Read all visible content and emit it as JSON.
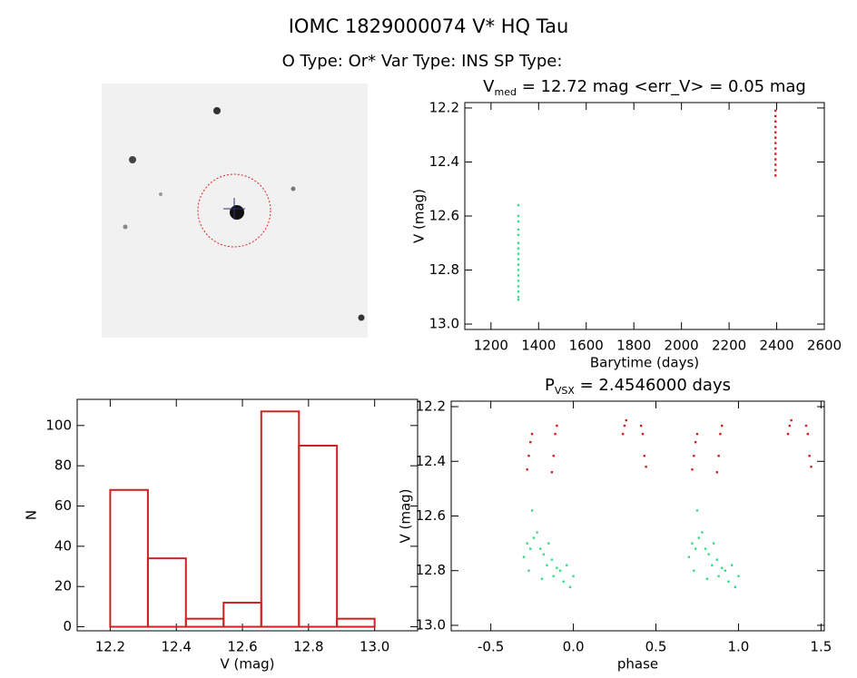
{
  "title": "IOMC 1829000074    V* HQ Tau",
  "subtitle": "O Type: Or*  Var Type: INS  SP Type:",
  "chart_data": [
    {
      "type": "scatter",
      "title": {
        "text": "V",
        "subscript": "med",
        "rest": " = 12.72 mag <err_V> = 0.05 mag"
      },
      "xlabel": "Barytime (days)",
      "ylabel": "V (mag)",
      "xlim": [
        1090,
        2600
      ],
      "ylim": [
        13.02,
        12.18
      ],
      "xticks": [
        1200,
        1400,
        1600,
        1800,
        2000,
        2200,
        2400,
        2600
      ],
      "yticks": [
        12.2,
        12.4,
        12.6,
        12.8,
        {
          "value": 13,
          "label": "13.0"
        }
      ],
      "series": [
        {
          "color": "#33dd88",
          "x": [
            1315,
            1315,
            1315,
            1315,
            1315,
            1315,
            1315,
            1315,
            1315,
            1315,
            1315,
            1315,
            1315,
            1315,
            1315,
            1315,
            1315
          ],
          "values": [
            12.56,
            12.6,
            12.62,
            12.65,
            12.67,
            12.7,
            12.72,
            12.74,
            12.76,
            12.78,
            12.8,
            12.82,
            12.84,
            12.86,
            12.88,
            12.9,
            12.91
          ]
        },
        {
          "color": "#cc2222",
          "x": [
            2395,
            2395,
            2395,
            2395,
            2395,
            2395,
            2395,
            2395,
            2395,
            2395,
            2395,
            2395,
            2395
          ],
          "values": [
            12.21,
            12.23,
            12.25,
            12.27,
            12.29,
            12.31,
            12.33,
            12.35,
            12.37,
            12.39,
            12.41,
            12.43,
            12.45
          ]
        }
      ]
    },
    {
      "type": "histogram",
      "xlabel": "V (mag)",
      "ylabel": "N",
      "color": "#cc2222",
      "bins": [
        12.2,
        12.314,
        12.429,
        12.543,
        12.657,
        12.771,
        12.886,
        13.0
      ],
      "values": [
        68,
        34,
        4,
        12,
        107,
        90,
        4
      ],
      "xlim": [
        12.1,
        13.13
      ],
      "ylim": [
        -2,
        113
      ],
      "xticks": [
        12.2,
        12.4,
        12.6,
        12.8,
        {
          "value": 13,
          "label": "13.0"
        }
      ],
      "yticks": [
        0,
        20,
        40,
        60,
        80,
        100
      ]
    },
    {
      "type": "scatter",
      "title": {
        "text": "P",
        "subscript": "VSX",
        "rest": " = 2.4546000 days"
      },
      "xlabel": "phase",
      "ylabel": "V (mag)",
      "xlim": [
        -0.74,
        1.52
      ],
      "ylim": [
        13.02,
        12.18
      ],
      "xticks": [
        -0.5,
        {
          "value": 0,
          "label": "0.0"
        },
        0.5,
        {
          "value": 1,
          "label": "1.0"
        },
        1.5
      ],
      "yticks": [
        12.2,
        12.4,
        12.6,
        12.8,
        {
          "value": 13,
          "label": "13.0"
        }
      ],
      "series": [
        {
          "color": "#cc2222",
          "x": [
            -0.28,
            -0.27,
            -0.26,
            -0.25,
            -0.13,
            -0.12,
            -0.11,
            -0.1,
            0.3,
            0.31,
            0.32,
            0.41,
            0.42,
            0.43,
            0.44,
            0.72,
            0.73,
            0.74,
            0.75,
            0.87,
            0.88,
            0.89,
            0.9,
            1.3,
            1.31,
            1.32,
            1.41,
            1.42,
            1.43,
            1.44
          ],
          "values": [
            12.43,
            12.38,
            12.33,
            12.3,
            12.44,
            12.38,
            12.3,
            12.27,
            12.3,
            12.27,
            12.25,
            12.27,
            12.3,
            12.38,
            12.42,
            12.43,
            12.38,
            12.33,
            12.3,
            12.44,
            12.38,
            12.3,
            12.27,
            12.3,
            12.27,
            12.25,
            12.27,
            12.3,
            12.38,
            12.42
          ]
        },
        {
          "color": "#33dd88",
          "x": [
            -0.3,
            -0.28,
            -0.27,
            -0.26,
            -0.25,
            -0.24,
            -0.22,
            -0.2,
            -0.19,
            -0.18,
            -0.16,
            -0.15,
            -0.13,
            -0.12,
            -0.1,
            -0.08,
            -0.06,
            -0.04,
            -0.02,
            0.0,
            0.7,
            0.72,
            0.73,
            0.74,
            0.75,
            0.76,
            0.78,
            0.8,
            0.81,
            0.82,
            0.84,
            0.85,
            0.87,
            0.88,
            0.9,
            0.92,
            0.94,
            0.96,
            0.98,
            1.0
          ],
          "values": [
            12.75,
            12.7,
            12.8,
            12.72,
            12.58,
            12.68,
            12.66,
            12.72,
            12.83,
            12.74,
            12.78,
            12.7,
            12.76,
            12.82,
            12.79,
            12.8,
            12.84,
            12.78,
            12.86,
            12.82,
            12.75,
            12.7,
            12.8,
            12.72,
            12.58,
            12.68,
            12.66,
            12.72,
            12.83,
            12.74,
            12.78,
            12.7,
            12.76,
            12.82,
            12.79,
            12.8,
            12.84,
            12.78,
            12.86,
            12.82
          ]
        }
      ]
    }
  ]
}
